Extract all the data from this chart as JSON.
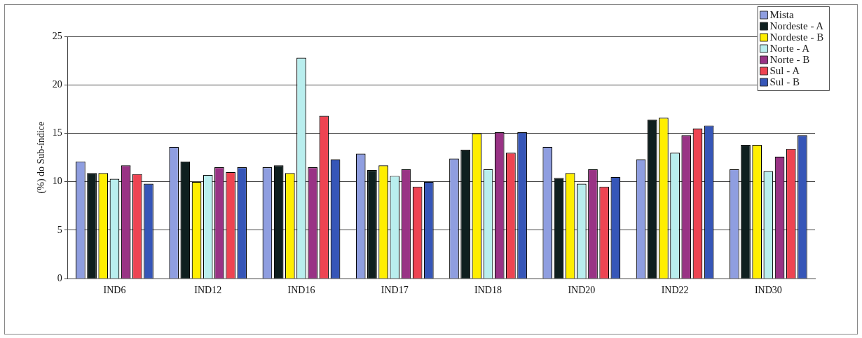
{
  "chart_data": {
    "type": "bar",
    "ylabel": "(%) do Sub-índice",
    "categories": [
      "IND6",
      "IND12",
      "IND16",
      "IND17",
      "IND18",
      "IND20",
      "IND22",
      "IND30"
    ],
    "series": [
      {
        "name": "Mista",
        "color": "#8f9ee0",
        "values": [
          12.1,
          13.6,
          11.5,
          12.9,
          12.4,
          13.6,
          12.3,
          11.3
        ]
      },
      {
        "name": "Nordeste - A",
        "color": "#0f1f1f",
        "values": [
          10.9,
          12.1,
          11.7,
          11.2,
          13.3,
          10.4,
          16.4,
          13.8
        ]
      },
      {
        "name": "Nordeste - B",
        "color": "#ffee00",
        "values": [
          10.9,
          10.0,
          10.9,
          11.7,
          15.0,
          10.9,
          16.6,
          13.8
        ]
      },
      {
        "name": "Norte - A",
        "color": "#b9eeee",
        "values": [
          10.3,
          10.7,
          22.8,
          10.6,
          11.3,
          9.8,
          13.0,
          11.1
        ]
      },
      {
        "name": "Norte - B",
        "color": "#993385",
        "values": [
          11.7,
          11.5,
          11.5,
          11.3,
          15.1,
          11.3,
          14.8,
          12.6
        ]
      },
      {
        "name": "Sul - A",
        "color": "#ee4452",
        "values": [
          10.8,
          11.0,
          16.8,
          9.5,
          13.0,
          9.5,
          15.5,
          13.4
        ]
      },
      {
        "name": "Sul - B",
        "color": "#3656b8",
        "values": [
          9.8,
          11.5,
          12.3,
          10.0,
          15.1,
          10.5,
          15.8,
          14.8
        ]
      }
    ],
    "ylim": [
      0,
      25
    ],
    "yticks": [
      0,
      5,
      10,
      15,
      20,
      25
    ],
    "grid": "y",
    "legend": "top right"
  }
}
